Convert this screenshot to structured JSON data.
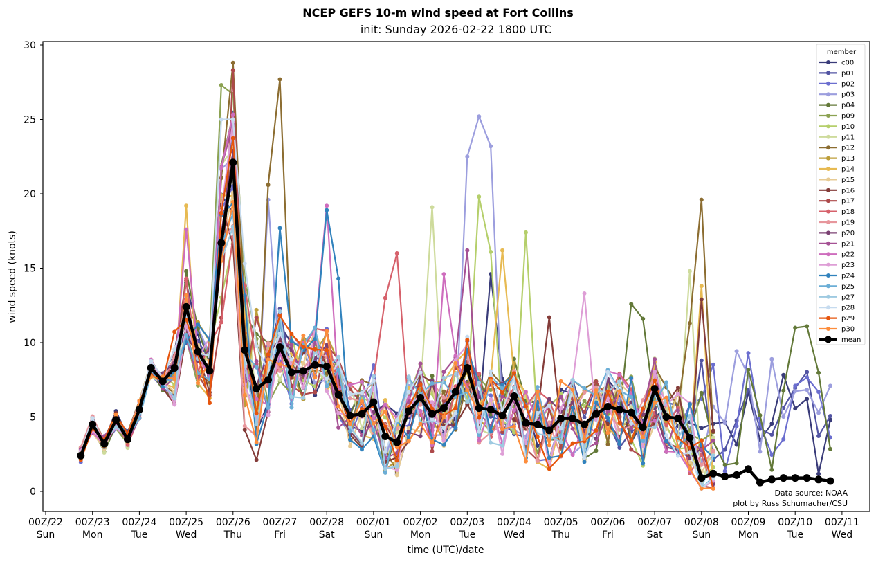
{
  "chart_data": {
    "type": "line",
    "title": "NCEP GEFS 10-m wind speed at Fort Collins",
    "subtitle": "init: Sunday 2026-02-22 1800 UTC",
    "xlabel": "time (UTC)/date",
    "ylabel": "wind speed (knots)",
    "ylim": [
      -1.3,
      30.2
    ],
    "xlim_days": [
      -0.05,
      17.4
    ],
    "yticks": [
      "0",
      "5",
      "10",
      "15",
      "20",
      "25",
      "30"
    ],
    "ytick_values": [
      0,
      5,
      10,
      15,
      20,
      25,
      30
    ],
    "xticks": [
      {
        "time": "00Z/22",
        "day": "Sun"
      },
      {
        "time": "00Z/23",
        "day": "Mon"
      },
      {
        "time": "00Z/24",
        "day": "Tue"
      },
      {
        "time": "00Z/25",
        "day": "Wed"
      },
      {
        "time": "00Z/26",
        "day": "Thu"
      },
      {
        "time": "00Z/27",
        "day": "Fri"
      },
      {
        "time": "00Z/28",
        "day": "Sat"
      },
      {
        "time": "00Z/01",
        "day": "Sun"
      },
      {
        "time": "00Z/02",
        "day": "Mon"
      },
      {
        "time": "00Z/03",
        "day": "Tue"
      },
      {
        "time": "00Z/04",
        "day": "Wed"
      },
      {
        "time": "00Z/05",
        "day": "Thu"
      },
      {
        "time": "00Z/06",
        "day": "Fri"
      },
      {
        "time": "00Z/07",
        "day": "Sat"
      },
      {
        "time": "00Z/08",
        "day": "Sun"
      },
      {
        "time": "00Z/09",
        "day": "Mon"
      },
      {
        "time": "00Z/10",
        "day": "Tue"
      },
      {
        "time": "00Z/11",
        "day": "Wed"
      }
    ],
    "x_units": "days since 00Z/22",
    "legend_title": "member",
    "legend_position": "top-right",
    "grid": false,
    "members": [
      {
        "name": "c00",
        "color": "#393b79"
      },
      {
        "name": "p01",
        "color": "#5254a3"
      },
      {
        "name": "p02",
        "color": "#6b6ecf"
      },
      {
        "name": "p03",
        "color": "#9c9ede"
      },
      {
        "name": "p04",
        "color": "#637939"
      },
      {
        "name": "p09",
        "color": "#8ca252"
      },
      {
        "name": "p10",
        "color": "#b5cf6b"
      },
      {
        "name": "p11",
        "color": "#cedb9c"
      },
      {
        "name": "p12",
        "color": "#8c6d31"
      },
      {
        "name": "p13",
        "color": "#bd9e39"
      },
      {
        "name": "p14",
        "color": "#e7ba52"
      },
      {
        "name": "p15",
        "color": "#e7cb94"
      },
      {
        "name": "p16",
        "color": "#843c39"
      },
      {
        "name": "p17",
        "color": "#ad494a"
      },
      {
        "name": "p18",
        "color": "#d6616b"
      },
      {
        "name": "p19",
        "color": "#e7969c"
      },
      {
        "name": "p20",
        "color": "#7b4173"
      },
      {
        "name": "p21",
        "color": "#a55194"
      },
      {
        "name": "p22",
        "color": "#ce6dbd"
      },
      {
        "name": "p23",
        "color": "#de9ed6"
      },
      {
        "name": "p24",
        "color": "#3182bd"
      },
      {
        "name": "p25",
        "color": "#6baed6"
      },
      {
        "name": "p27",
        "color": "#9ecae1"
      },
      {
        "name": "p28",
        "color": "#c6dbef"
      },
      {
        "name": "p29",
        "color": "#e6550d"
      },
      {
        "name": "p30",
        "color": "#fd8d3c"
      }
    ],
    "mean": {
      "name": "mean",
      "color": "#000000",
      "x": [
        0.75,
        1.0,
        1.25,
        1.5,
        1.75,
        2.0,
        2.25,
        2.5,
        2.75,
        3.0,
        3.25,
        3.5,
        3.75,
        4.0,
        4.25,
        4.5,
        4.75,
        5.0,
        5.25,
        5.5,
        5.75,
        6.0,
        6.25,
        6.5,
        6.75,
        7.0,
        7.25,
        7.5,
        7.75,
        8.0,
        8.25,
        8.5,
        8.75,
        9.0,
        9.25,
        9.5,
        9.75,
        10.0,
        10.25,
        10.5,
        10.75,
        11.0,
        11.25,
        11.5,
        11.75,
        12.0,
        12.25,
        12.5,
        12.75,
        13.0,
        13.25,
        13.5,
        13.75,
        14.0,
        14.25,
        14.5,
        14.75,
        15.0,
        15.25,
        15.5,
        15.75,
        16.0,
        16.25,
        16.5,
        16.75
      ],
      "y": [
        2.4,
        4.5,
        3.2,
        4.8,
        3.5,
        5.5,
        8.3,
        7.4,
        8.3,
        12.4,
        9.4,
        8.1,
        16.7,
        22.1,
        9.5,
        6.9,
        7.5,
        9.7,
        8.0,
        8.1,
        8.5,
        8.4,
        6.5,
        5.1,
        5.2,
        6.0,
        3.7,
        3.3,
        5.4,
        6.3,
        5.2,
        5.6,
        6.7,
        8.3,
        5.6,
        5.5,
        5.1,
        6.4,
        4.6,
        4.5,
        4.1,
        4.9,
        4.9,
        4.5,
        5.2,
        5.7,
        5.5,
        5.3,
        4.3,
        6.9,
        5.0,
        4.9,
        3.6,
        0.9,
        1.2,
        1.0,
        1.1,
        1.5,
        0.6,
        0.8,
        0.9,
        0.9,
        0.9,
        0.8,
        0.7
      ]
    }
  },
  "credits": {
    "source": "Data source: NOAA",
    "author": "plot by Russ Schumacher/CSU"
  }
}
